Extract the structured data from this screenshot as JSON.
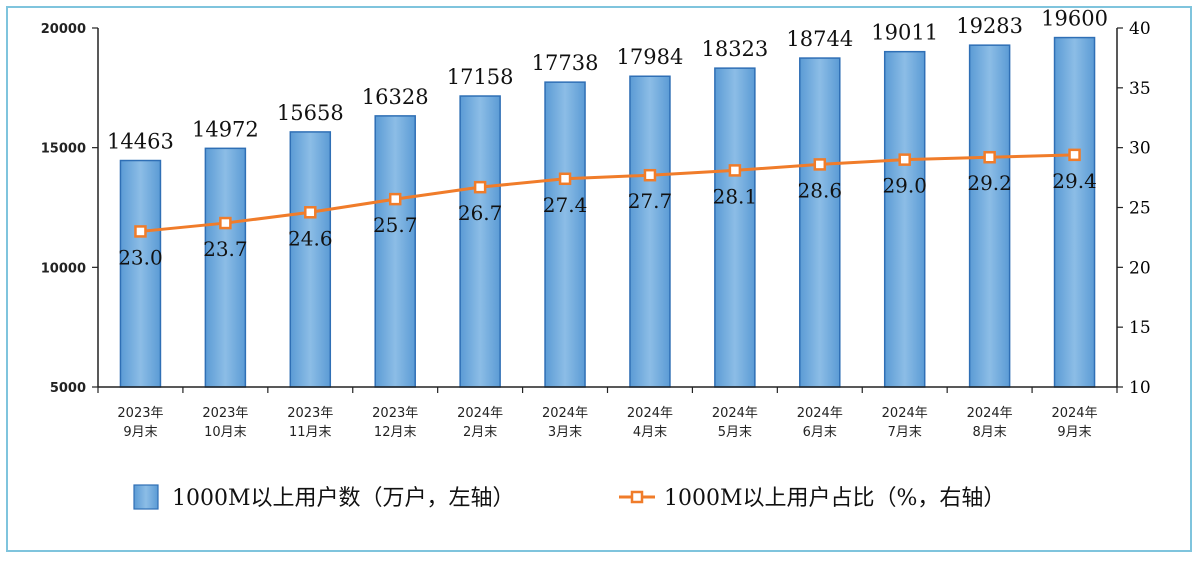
{
  "chart_data": {
    "type": "bar",
    "categories": [
      "2023年\n9月末",
      "2023年\n10月末",
      "2023年\n11月末",
      "2023年\n12月末",
      "2024年\n2月末",
      "2024年\n3月末",
      "2024年\n4月末",
      "2024年\n5月末",
      "2024年\n6月末",
      "2024年\n7月末",
      "2024年\n8月末",
      "2024年\n9月末"
    ],
    "series": [
      {
        "name": "1000M以上用户数（万户，左轴）",
        "type": "bar",
        "axis": "left",
        "values": [
          14463,
          14972,
          15658,
          16328,
          17158,
          17738,
          17984,
          18323,
          18744,
          19011,
          19283,
          19600
        ],
        "color": "#6fa8dc"
      },
      {
        "name": "1000M以上用户占比（%，右轴）",
        "type": "line",
        "axis": "right",
        "values": [
          23.0,
          23.7,
          24.6,
          25.7,
          26.7,
          27.4,
          27.7,
          28.1,
          28.6,
          29.0,
          29.2,
          29.4
        ],
        "color": "#f07c2a"
      }
    ],
    "ylim_left": [
      5000,
      20000
    ],
    "yticks_left": [
      5000,
      10000,
      15000,
      20000
    ],
    "ylim_right": [
      10,
      40
    ],
    "yticks_right": [
      10,
      15,
      20,
      25,
      30,
      35,
      40
    ],
    "grid": false,
    "legend": "bottom"
  }
}
